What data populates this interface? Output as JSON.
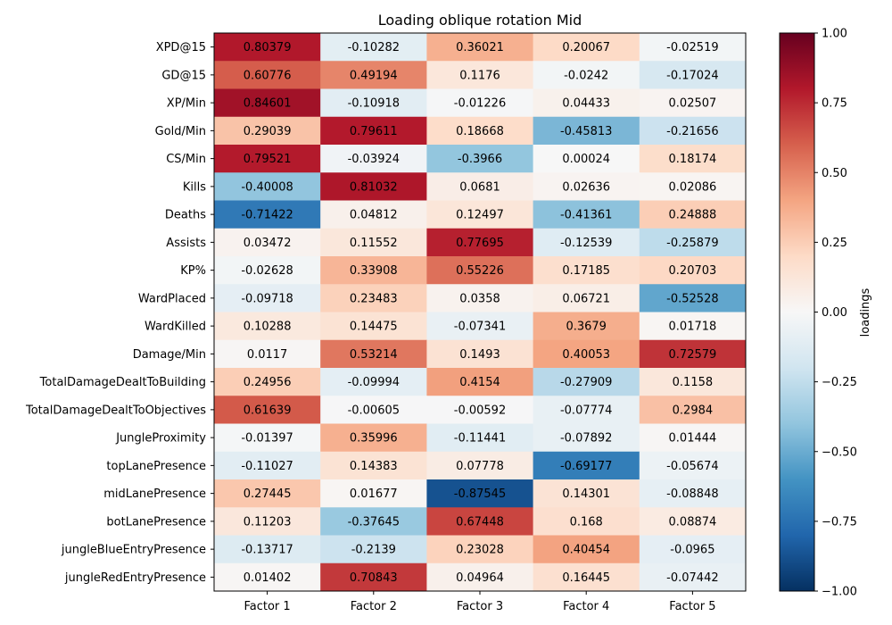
{
  "chart_data": {
    "type": "heatmap",
    "title": "Loading oblique rotation Mid",
    "xlabel": "",
    "ylabel": "",
    "colorbar_label": "loadings",
    "colormap": "RdBu_r",
    "vmin": -1.0,
    "vmax": 1.0,
    "colorbar_ticks": [
      "1.00",
      "0.75",
      "0.50",
      "0.25",
      "0.00",
      "−0.25",
      "−0.50",
      "−0.75",
      "−1.00"
    ],
    "colorbar_tick_values": [
      1.0,
      0.75,
      0.5,
      0.25,
      0.0,
      -0.25,
      -0.5,
      -0.75,
      -1.0
    ],
    "columns": [
      "Factor 1",
      "Factor 2",
      "Factor 3",
      "Factor 4",
      "Factor 5"
    ],
    "rows": [
      "XPD@15",
      "GD@15",
      "XP/Min",
      "Gold/Min",
      "CS/Min",
      "Kills",
      "Deaths",
      "Assists",
      "KP%",
      "WardPlaced",
      "WardKilled",
      "Damage/Min",
      "TotalDamageDealtToBuilding",
      "TotalDamageDealtToObjectives",
      "JungleProximity",
      "topLanePresence",
      "midLanePresence",
      "botLanePresence",
      "jungleBlueEntryPresence",
      "jungleRedEntryPresence"
    ],
    "values": [
      [
        "0.80379",
        "-0.10282",
        "0.36021",
        "0.20067",
        "-0.02519"
      ],
      [
        "0.60776",
        "0.49194",
        "0.1176",
        "-0.0242",
        "-0.17024"
      ],
      [
        "0.84601",
        "-0.10918",
        "-0.01226",
        "0.04433",
        "0.02507"
      ],
      [
        "0.29039",
        "0.79611",
        "0.18668",
        "-0.45813",
        "-0.21656"
      ],
      [
        "0.79521",
        "-0.03924",
        "-0.3966",
        "0.00024",
        "0.18174"
      ],
      [
        "-0.40008",
        "0.81032",
        "0.0681",
        "0.02636",
        "0.02086"
      ],
      [
        "-0.71422",
        "0.04812",
        "0.12497",
        "-0.41361",
        "0.24888"
      ],
      [
        "0.03472",
        "0.11552",
        "0.77695",
        "-0.12539",
        "-0.25879"
      ],
      [
        "-0.02628",
        "0.33908",
        "0.55226",
        "0.17185",
        "0.20703"
      ],
      [
        "-0.09718",
        "0.23483",
        "0.0358",
        "0.06721",
        "-0.52528"
      ],
      [
        "0.10288",
        "0.14475",
        "-0.07341",
        "0.3679",
        "0.01718"
      ],
      [
        "0.0117",
        "0.53214",
        "0.1493",
        "0.40053",
        "0.72579"
      ],
      [
        "0.24956",
        "-0.09994",
        "0.4154",
        "-0.27909",
        "0.1158"
      ],
      [
        "0.61639",
        "-0.00605",
        "-0.00592",
        "-0.07774",
        "0.2984"
      ],
      [
        "-0.01397",
        "0.35996",
        "-0.11441",
        "-0.07892",
        "0.01444"
      ],
      [
        "-0.11027",
        "0.14383",
        "0.07778",
        "-0.69177",
        "-0.05674"
      ],
      [
        "0.27445",
        "0.01677",
        "-0.87545",
        "0.14301",
        "-0.08848"
      ],
      [
        "0.11203",
        "-0.37645",
        "0.67448",
        "0.168",
        "0.08874"
      ],
      [
        "-0.13717",
        "-0.2139",
        "0.23028",
        "0.40454",
        "-0.0965"
      ],
      [
        "0.01402",
        "0.70843",
        "0.04964",
        "0.16445",
        "-0.07442"
      ]
    ]
  }
}
